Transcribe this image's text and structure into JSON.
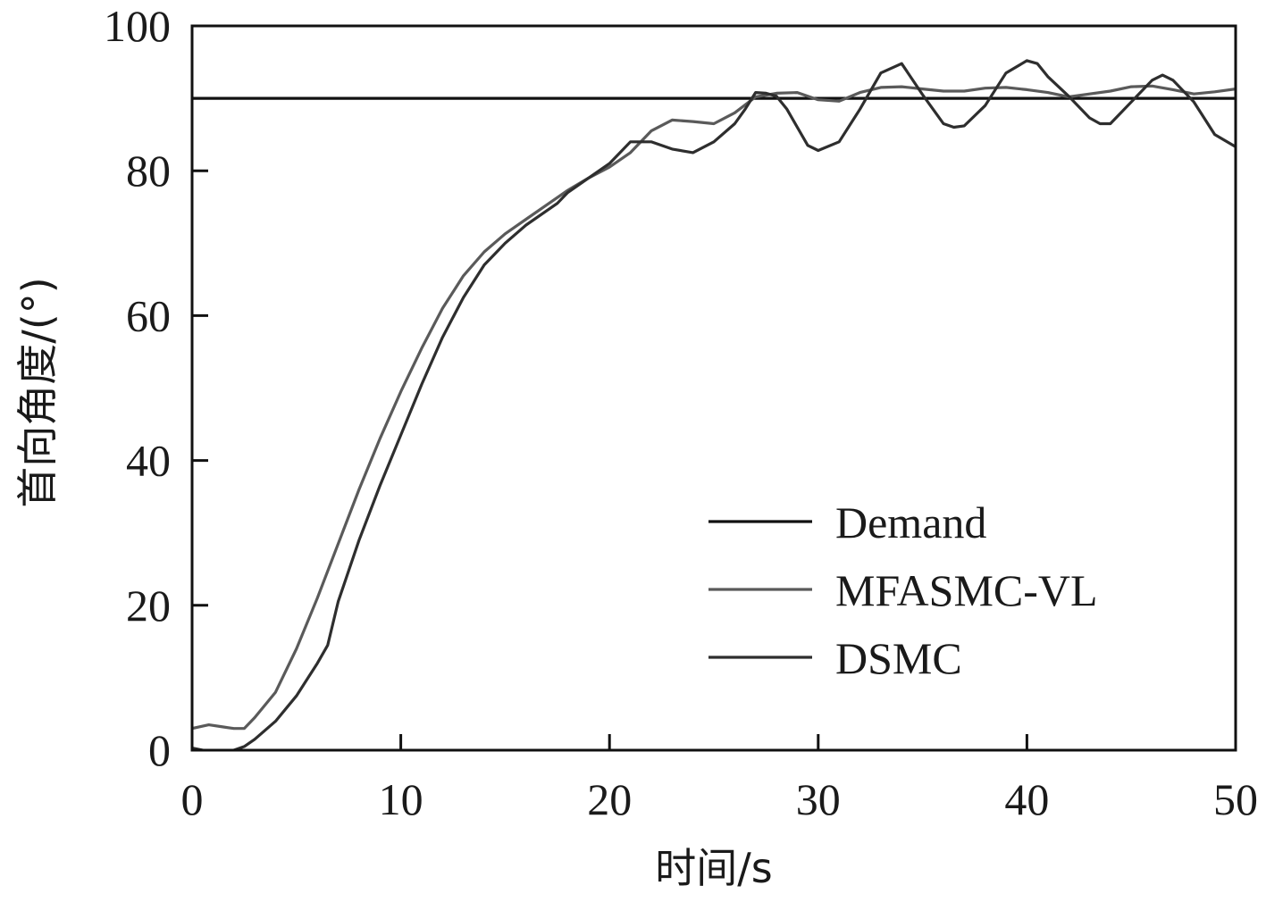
{
  "chart_data": {
    "type": "line",
    "xlabel": "时间/s",
    "ylabel": "首向角度/(°)",
    "xlim": [
      0,
      50
    ],
    "ylim": [
      0,
      100
    ],
    "xticks": [
      0,
      10,
      20,
      30,
      40,
      50
    ],
    "yticks": [
      0,
      20,
      40,
      60,
      80,
      100
    ],
    "grid": false,
    "legend_position": "bottom-right",
    "series": [
      {
        "name": "Demand",
        "color": "#111111",
        "x": [
          0,
          50
        ],
        "y": [
          90,
          90
        ]
      },
      {
        "name": "MFASMC-VL",
        "color": "#5a5a5a",
        "x": [
          0,
          0.8,
          1.5,
          2,
          2.5,
          3,
          4,
          5,
          6,
          7,
          8,
          9,
          10,
          11,
          12,
          13,
          14,
          15,
          16,
          17,
          18,
          19,
          20,
          21,
          22,
          23,
          24,
          25,
          26,
          27,
          28,
          29,
          30,
          31,
          32,
          33,
          34,
          35,
          36,
          37,
          38,
          39,
          40,
          41,
          42,
          43,
          44,
          45,
          46,
          47,
          48,
          49,
          50
        ],
        "y": [
          3,
          3.5,
          3.2,
          3.0,
          3.0,
          4.5,
          8,
          14,
          21,
          28.5,
          36,
          43,
          49.5,
          55.5,
          61,
          65.5,
          68.8,
          71.3,
          73.3,
          75.3,
          77.3,
          79,
          80.5,
          82.5,
          85.5,
          87,
          86.8,
          86.5,
          88,
          90.2,
          90.7,
          90.8,
          89.8,
          89.6,
          90.8,
          91.5,
          91.6,
          91.3,
          91.0,
          91.0,
          91.4,
          91.5,
          91.2,
          90.8,
          90.2,
          90.6,
          91.0,
          91.6,
          91.7,
          91.2,
          90.6,
          90.9,
          91.3
        ]
      },
      {
        "name": "DSMC",
        "color": "#2e2e2e",
        "x": [
          0,
          0.5,
          1,
          1.5,
          2,
          2.5,
          3,
          4,
          5,
          6,
          6.5,
          7,
          8,
          9,
          10,
          11,
          12,
          13,
          14,
          14.5,
          15,
          16,
          17,
          17.5,
          18,
          19,
          20,
          21,
          22,
          23,
          24,
          25,
          26,
          26.5,
          27,
          27.5,
          28,
          28.5,
          29,
          29.5,
          30,
          31,
          32,
          33,
          34,
          35,
          36,
          36.5,
          37,
          38,
          39,
          40,
          40.5,
          41,
          42,
          43,
          43.5,
          44,
          45,
          46,
          46.5,
          47,
          48,
          49,
          50
        ],
        "y": [
          0.3,
          0,
          -0.3,
          -0.3,
          0,
          0.5,
          1.5,
          4,
          7.5,
          12,
          14.5,
          20.5,
          29,
          36.5,
          43.5,
          50.5,
          57,
          62.5,
          67,
          68.5,
          70,
          72.5,
          74.5,
          75.5,
          77,
          79,
          81,
          84,
          84,
          83,
          82.5,
          84,
          86.5,
          88.5,
          90.8,
          90.7,
          90.3,
          88.5,
          86,
          83.5,
          82.8,
          84,
          88.5,
          93.5,
          94.8,
          90.5,
          86.5,
          86,
          86.2,
          89,
          93.5,
          95.2,
          94.8,
          93,
          90.3,
          87.3,
          86.5,
          86.5,
          89.5,
          92.5,
          93.2,
          92.5,
          89.5,
          85,
          83.3
        ]
      }
    ]
  }
}
